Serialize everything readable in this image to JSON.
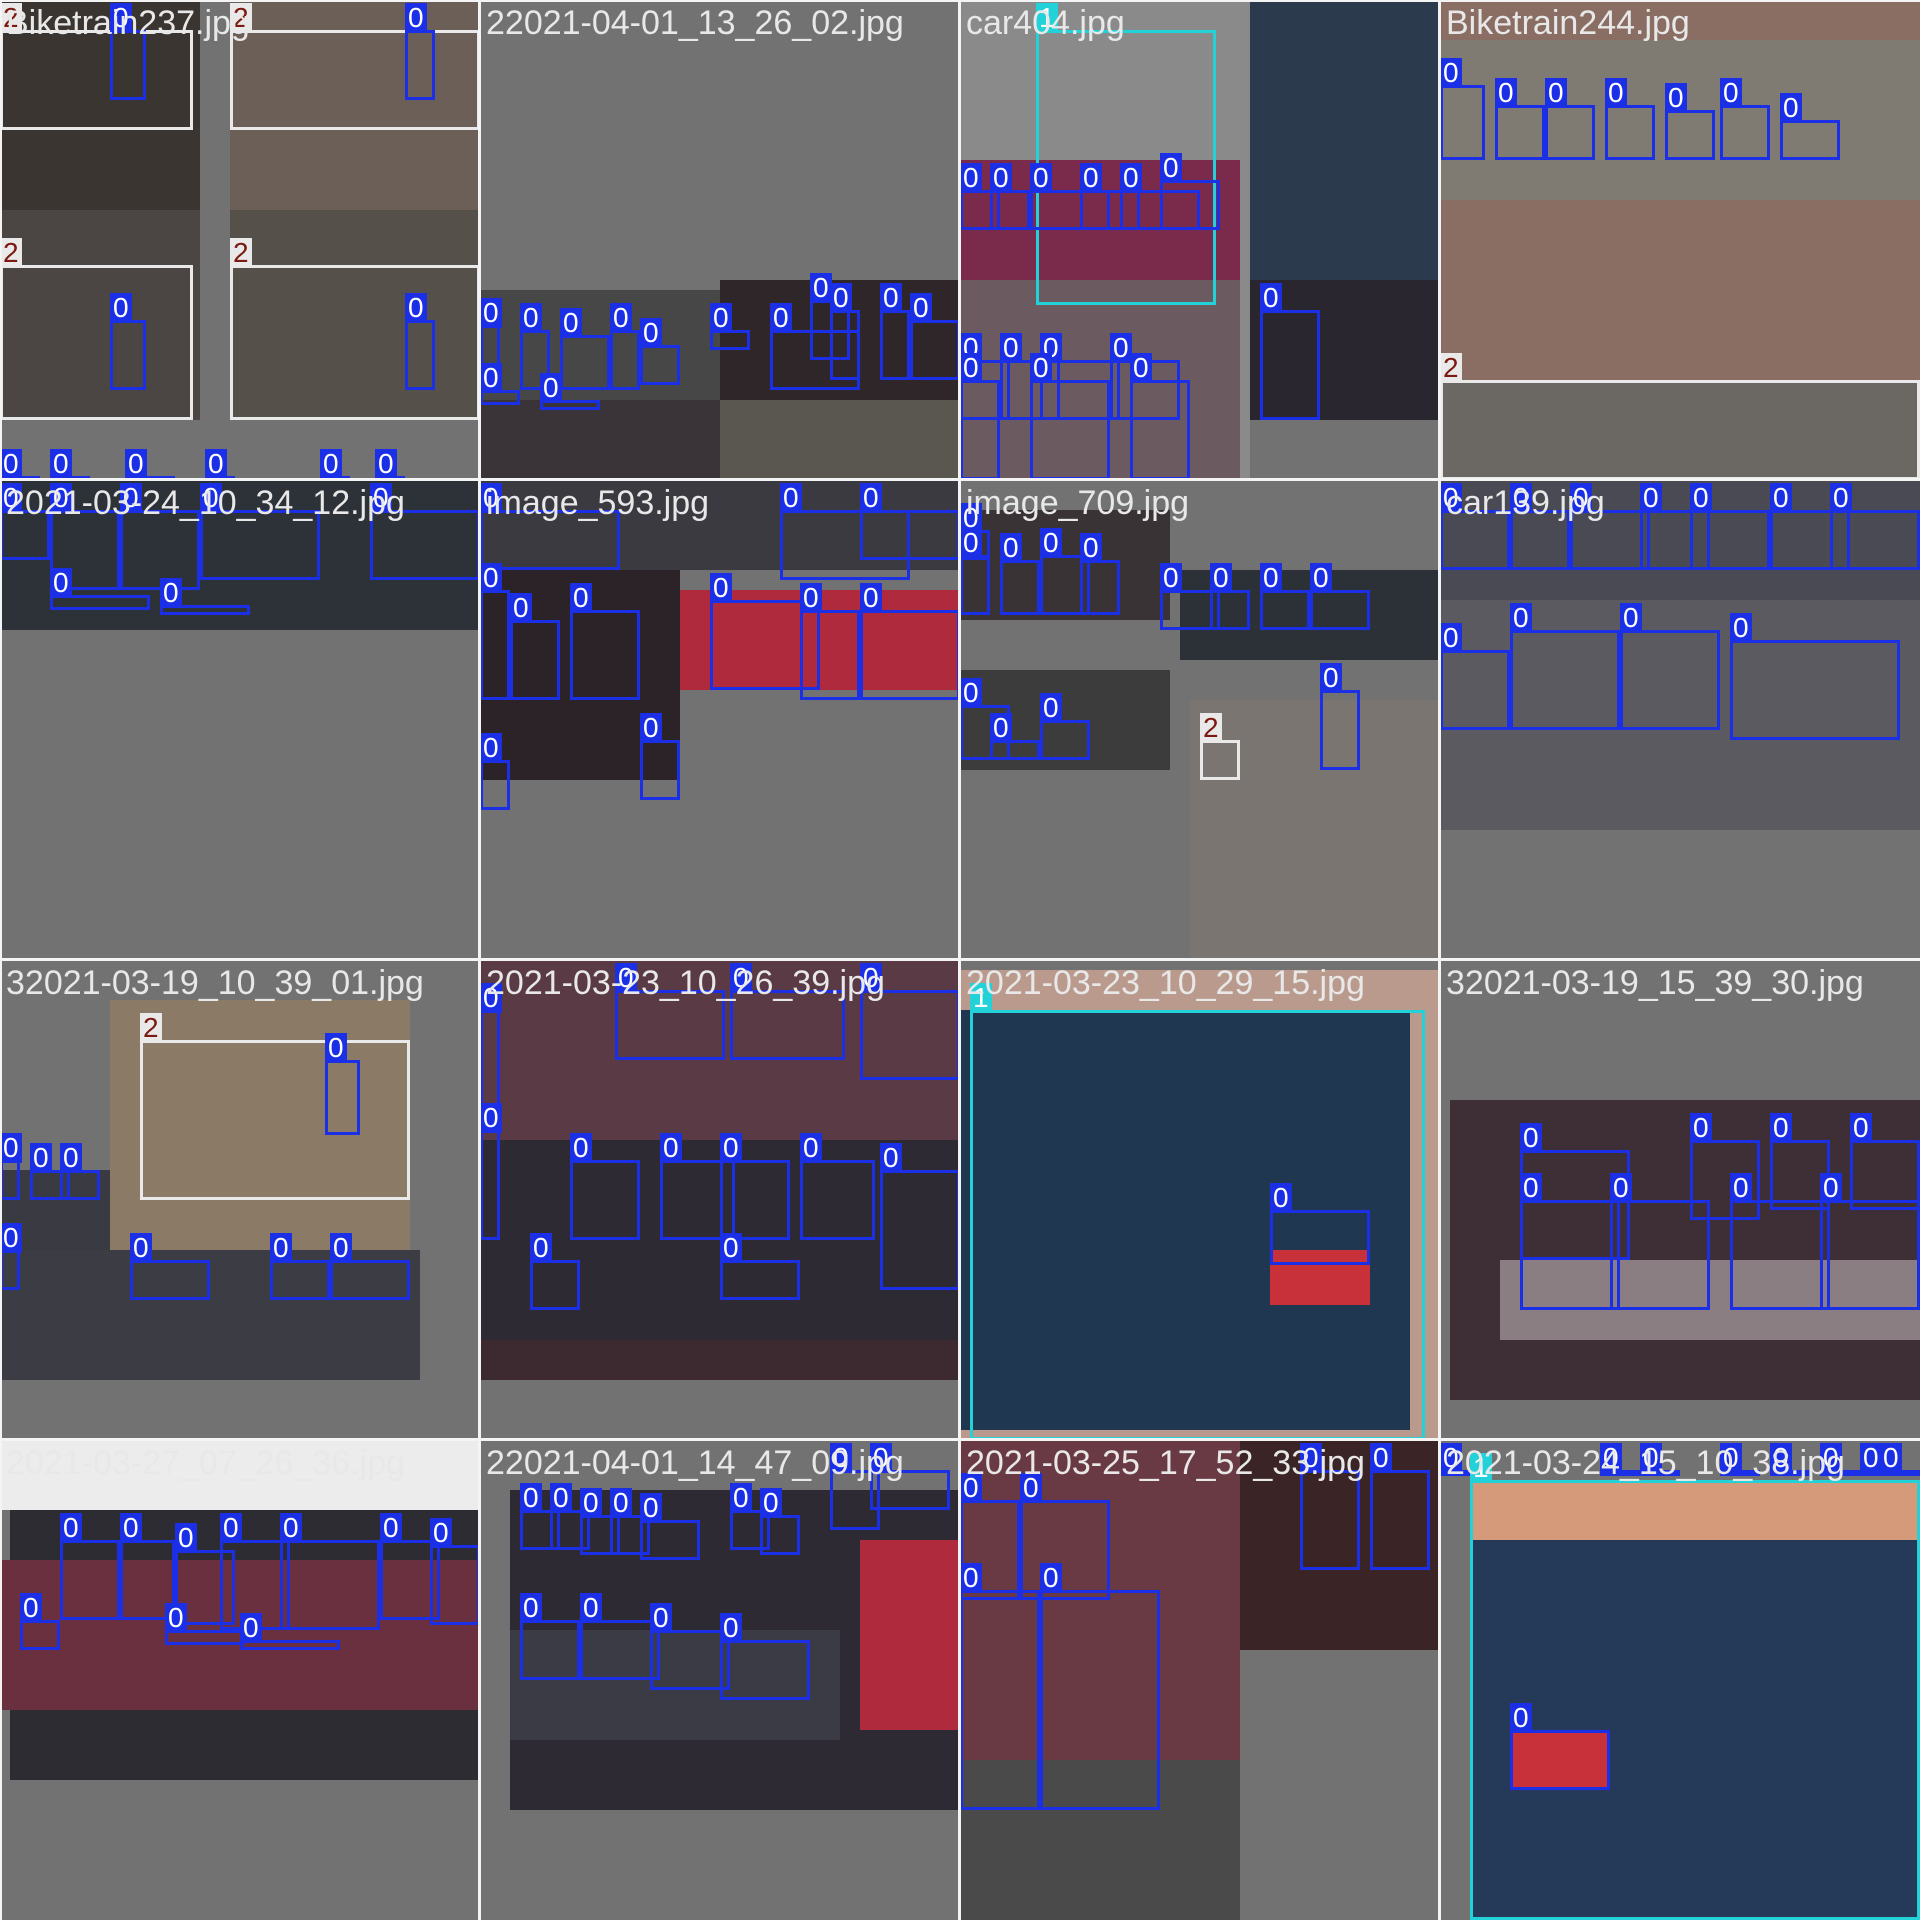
{
  "title": "",
  "colors": {
    "class_0": "#1a2fe6",
    "class_1": "#23d2d8",
    "class_2": "#e9e9e9",
    "filename_text": "#e8e8e8",
    "background": "#727272"
  },
  "class_names": [
    "0",
    "1",
    "2"
  ],
  "tiles": [
    {
      "filename": "Biketrain237.jpg",
      "patches": [
        {
          "c": "#3a3530"
        },
        {
          "c": "#6b5f57"
        },
        {
          "c": "#4b4643"
        },
        {
          "c": "#555049"
        }
      ],
      "boxes": [
        {
          "cls": "2",
          "label": "2"
        },
        {
          "cls": "0",
          "label": "0"
        },
        {
          "cls": "2",
          "label": "2"
        },
        {
          "cls": "0",
          "label": "0"
        },
        {
          "cls": "2",
          "label": "2"
        },
        {
          "cls": "0",
          "label": "0"
        },
        {
          "cls": "2",
          "label": "2"
        },
        {
          "cls": "0",
          "label": "0"
        },
        {
          "cls": "0",
          "label": "0"
        },
        {
          "cls": "0",
          "label": "0"
        },
        {
          "cls": "0",
          "label": "0"
        },
        {
          "cls": "0",
          "label": "0"
        },
        {
          "cls": "0",
          "label": "0"
        },
        {
          "cls": "0",
          "label": "0"
        }
      ]
    },
    {
      "filename": "22021-04-01_13_26_02.jpg",
      "patches": [
        {
          "c": "#474747"
        },
        {
          "c": "#2e2628"
        },
        {
          "c": "#3a3337"
        },
        {
          "c": "#5a5650"
        }
      ],
      "boxes": [
        {
          "cls": "0",
          "label": "0"
        },
        {
          "cls": "0",
          "label": "0"
        },
        {
          "cls": "0",
          "label": "0"
        },
        {
          "cls": "0",
          "label": "0"
        },
        {
          "cls": "0",
          "label": "0"
        },
        {
          "cls": "0",
          "label": "0"
        },
        {
          "cls": "0",
          "label": "0"
        },
        {
          "cls": "0",
          "label": "0"
        },
        {
          "cls": "0",
          "label": "0"
        },
        {
          "cls": "0",
          "label": "0"
        },
        {
          "cls": "0",
          "label": "0"
        },
        {
          "cls": "0",
          "label": "0"
        },
        {
          "cls": "0",
          "label": "0"
        }
      ]
    },
    {
      "filename": "car404.jpg",
      "patches": [
        {
          "c": "#8a8a8a"
        },
        {
          "c": "#7a2a4a"
        },
        {
          "c": "#6b5a5f"
        },
        {
          "c": "#2b3a4d"
        },
        {
          "c": "#2a2630"
        }
      ],
      "boxes": [
        {
          "cls": "1",
          "label": "1"
        },
        {
          "cls": "0",
          "label": "0"
        },
        {
          "cls": "0",
          "label": "0"
        },
        {
          "cls": "0",
          "label": "0"
        },
        {
          "cls": "0",
          "label": "0"
        },
        {
          "cls": "0",
          "label": "0"
        },
        {
          "cls": "0",
          "label": "0"
        },
        {
          "cls": "0",
          "label": "0"
        },
        {
          "cls": "0",
          "label": "0"
        },
        {
          "cls": "0",
          "label": "0"
        },
        {
          "cls": "0",
          "label": "0"
        },
        {
          "cls": "0",
          "label": "0"
        },
        {
          "cls": "0",
          "label": "0"
        },
        {
          "cls": "0",
          "label": "0"
        },
        {
          "cls": "0",
          "label": "0"
        }
      ]
    },
    {
      "filename": "Biketrain244.jpg",
      "patches": [
        {
          "c": "#8a6d63"
        },
        {
          "c": "#7f7a72"
        },
        {
          "c": "#6b6762"
        }
      ],
      "boxes": [
        {
          "cls": "0",
          "label": "0"
        },
        {
          "cls": "0",
          "label": "0"
        },
        {
          "cls": "0",
          "label": "0"
        },
        {
          "cls": "0",
          "label": "0"
        },
        {
          "cls": "0",
          "label": "0"
        },
        {
          "cls": "0",
          "label": "0"
        },
        {
          "cls": "0",
          "label": "0"
        },
        {
          "cls": "2",
          "label": "2"
        }
      ]
    },
    {
      "filename": "2021-03-24_10_34_12.jpg",
      "patches": [
        {
          "c": "#2d3138"
        }
      ],
      "boxes": [
        {
          "cls": "0",
          "label": "0"
        },
        {
          "cls": "0",
          "label": "0"
        },
        {
          "cls": "0",
          "label": "0"
        },
        {
          "cls": "0",
          "label": "0"
        },
        {
          "cls": "0",
          "label": "0"
        },
        {
          "cls": "0",
          "label": "0"
        },
        {
          "cls": "0",
          "label": "0"
        }
      ]
    },
    {
      "filename": "image_593.jpg",
      "patches": [
        {
          "c": "#3b3a40"
        },
        {
          "c": "#2c2328"
        },
        {
          "c": "#b02a3e"
        }
      ],
      "boxes": [
        {
          "cls": "0",
          "label": "0"
        },
        {
          "cls": "0",
          "label": "0"
        },
        {
          "cls": "0",
          "label": "0"
        },
        {
          "cls": "0",
          "label": "0"
        },
        {
          "cls": "0",
          "label": "0"
        },
        {
          "cls": "0",
          "label": "0"
        },
        {
          "cls": "0",
          "label": "0"
        },
        {
          "cls": "0",
          "label": "0"
        },
        {
          "cls": "0",
          "label": "0"
        },
        {
          "cls": "0",
          "label": "0"
        },
        {
          "cls": "0",
          "label": "0"
        }
      ]
    },
    {
      "filename": "image_709.jpg",
      "patches": [
        {
          "c": "#3a3336"
        },
        {
          "c": "#2c3037"
        },
        {
          "c": "#3c3c3c"
        },
        {
          "c": "#7a7570"
        }
      ],
      "boxes": [
        {
          "cls": "0",
          "label": "0"
        },
        {
          "cls": "0",
          "label": "0"
        },
        {
          "cls": "0",
          "label": "0"
        },
        {
          "cls": "0",
          "label": "0"
        },
        {
          "cls": "0",
          "label": "0"
        },
        {
          "cls": "0",
          "label": "0"
        },
        {
          "cls": "0",
          "label": "0"
        },
        {
          "cls": "0",
          "label": "0"
        },
        {
          "cls": "0",
          "label": "0"
        },
        {
          "cls": "0",
          "label": "0"
        },
        {
          "cls": "0",
          "label": "0"
        },
        {
          "cls": "0",
          "label": "0"
        },
        {
          "cls": "2",
          "label": "2"
        },
        {
          "cls": "0",
          "label": "0"
        }
      ]
    },
    {
      "filename": "car139.jpg",
      "patches": [
        {
          "c": "#4a4a55"
        },
        {
          "c": "#5a5a60"
        }
      ],
      "boxes": [
        {
          "cls": "0",
          "label": "0"
        },
        {
          "cls": "0",
          "label": "0"
        },
        {
          "cls": "0",
          "label": "0"
        },
        {
          "cls": "0",
          "label": "0"
        },
        {
          "cls": "0",
          "label": "0"
        },
        {
          "cls": "0",
          "label": "0"
        },
        {
          "cls": "0",
          "label": "0"
        },
        {
          "cls": "0",
          "label": "0"
        },
        {
          "cls": "0",
          "label": "0"
        },
        {
          "cls": "0",
          "label": "0"
        },
        {
          "cls": "0",
          "label": "0"
        }
      ]
    },
    {
      "filename": "32021-03-19_10_39_01.jpg",
      "patches": [
        {
          "c": "#8a7a66"
        },
        {
          "c": "#3a3a42"
        },
        {
          "c": "#3b3c44"
        }
      ],
      "boxes": [
        {
          "cls": "2",
          "label": "2"
        },
        {
          "cls": "0",
          "label": "0"
        },
        {
          "cls": "0",
          "label": "0"
        },
        {
          "cls": "0",
          "label": "0"
        },
        {
          "cls": "0",
          "label": "0"
        },
        {
          "cls": "0",
          "label": "0"
        },
        {
          "cls": "0",
          "label": "0"
        },
        {
          "cls": "0",
          "label": "0"
        },
        {
          "cls": "0",
          "label": "0"
        }
      ]
    },
    {
      "filename": "2021-03-23_10_26_39.jpg",
      "patches": [
        {
          "c": "#5a3a44"
        },
        {
          "c": "#2d2a34"
        },
        {
          "c": "#3d2a30"
        }
      ],
      "boxes": [
        {
          "cls": "0",
          "label": "0"
        },
        {
          "cls": "0",
          "label": "0"
        },
        {
          "cls": "0",
          "label": "0"
        },
        {
          "cls": "0",
          "label": "0"
        },
        {
          "cls": "0",
          "label": "0"
        },
        {
          "cls": "0",
          "label": "0"
        },
        {
          "cls": "0",
          "label": "0"
        },
        {
          "cls": "0",
          "label": "0"
        },
        {
          "cls": "0",
          "label": "0"
        },
        {
          "cls": "0",
          "label": "0"
        },
        {
          "cls": "0",
          "label": "0"
        },
        {
          "cls": "0",
          "label": "0"
        }
      ]
    },
    {
      "filename": "2021-03-23_10_29_15.jpg",
      "patches": [
        {
          "c": "#b99a8c"
        },
        {
          "c": "#1f3750"
        },
        {
          "c": "#c8303a"
        }
      ],
      "boxes": [
        {
          "cls": "1",
          "label": "1"
        },
        {
          "cls": "0",
          "label": "0"
        }
      ]
    },
    {
      "filename": "32021-03-19_15_39_30.jpg",
      "patches": [
        {
          "c": "#3e2f36"
        },
        {
          "c": "#8a7e82"
        }
      ],
      "boxes": [
        {
          "cls": "0",
          "label": "0"
        },
        {
          "cls": "0",
          "label": "0"
        },
        {
          "cls": "0",
          "label": "0"
        },
        {
          "cls": "0",
          "label": "0"
        },
        {
          "cls": "0",
          "label": "0"
        },
        {
          "cls": "0",
          "label": "0"
        },
        {
          "cls": "0",
          "label": "0"
        },
        {
          "cls": "0",
          "label": "0"
        }
      ]
    },
    {
      "filename": "2021-03-27_07_26_36.jpg",
      "patches": [
        {
          "c": "#2c2c32"
        },
        {
          "c": "#6a3040"
        },
        {
          "c": "#ececec"
        }
      ],
      "boxes": [
        {
          "cls": "0",
          "label": "0"
        },
        {
          "cls": "0",
          "label": "0"
        },
        {
          "cls": "0",
          "label": "0"
        },
        {
          "cls": "0",
          "label": "0"
        },
        {
          "cls": "0",
          "label": "0"
        },
        {
          "cls": "0",
          "label": "0"
        },
        {
          "cls": "0",
          "label": "0"
        },
        {
          "cls": "0",
          "label": "0"
        },
        {
          "cls": "0",
          "label": "0"
        },
        {
          "cls": "0",
          "label": "0"
        }
      ]
    },
    {
      "filename": "22021-04-01_14_47_09.jpg",
      "patches": [
        {
          "c": "#2e2a33"
        },
        {
          "c": "#3a3b45"
        },
        {
          "c": "#b02a3e"
        },
        {
          "c": "#3a3c44"
        }
      ],
      "boxes": [
        {
          "cls": "0",
          "label": "0"
        },
        {
          "cls": "0",
          "label": "0"
        },
        {
          "cls": "0",
          "label": "0"
        },
        {
          "cls": "0",
          "label": "0"
        },
        {
          "cls": "0",
          "label": "0"
        },
        {
          "cls": "0",
          "label": "0"
        },
        {
          "cls": "0",
          "label": "0"
        },
        {
          "cls": "0",
          "label": "0"
        },
        {
          "cls": "0",
          "label": "0"
        },
        {
          "cls": "0",
          "label": "0"
        },
        {
          "cls": "0",
          "label": "0"
        },
        {
          "cls": "0",
          "label": "0"
        },
        {
          "cls": "0",
          "label": "0"
        }
      ]
    },
    {
      "filename": "2021-03-25_17_52_33.jpg",
      "patches": [
        {
          "c": "#6a3a44"
        },
        {
          "c": "#3a2426"
        },
        {
          "c": "#4a4a4a"
        }
      ],
      "boxes": [
        {
          "cls": "0",
          "label": "0"
        },
        {
          "cls": "0",
          "label": "0"
        },
        {
          "cls": "0",
          "label": "0"
        },
        {
          "cls": "0",
          "label": "0"
        },
        {
          "cls": "0",
          "label": "0"
        },
        {
          "cls": "0",
          "label": "0"
        }
      ]
    },
    {
      "filename": "2021-03-24_15_10_38.jpg",
      "patches": [
        {
          "c": "#d59a7a"
        },
        {
          "c": "#243a58"
        },
        {
          "c": "#c8303a"
        }
      ],
      "boxes": [
        {
          "cls": "0",
          "label": "0"
        },
        {
          "cls": "0",
          "label": "0"
        },
        {
          "cls": "0",
          "label": "0"
        },
        {
          "cls": "0",
          "label": "0"
        },
        {
          "cls": "0",
          "label": "0"
        },
        {
          "cls": "0",
          "label": "0"
        },
        {
          "cls": "0",
          "label": "0"
        },
        {
          "cls": "0",
          "label": "0"
        },
        {
          "cls": "1",
          "label": "1"
        },
        {
          "cls": "0",
          "label": "0"
        }
      ]
    }
  ]
}
